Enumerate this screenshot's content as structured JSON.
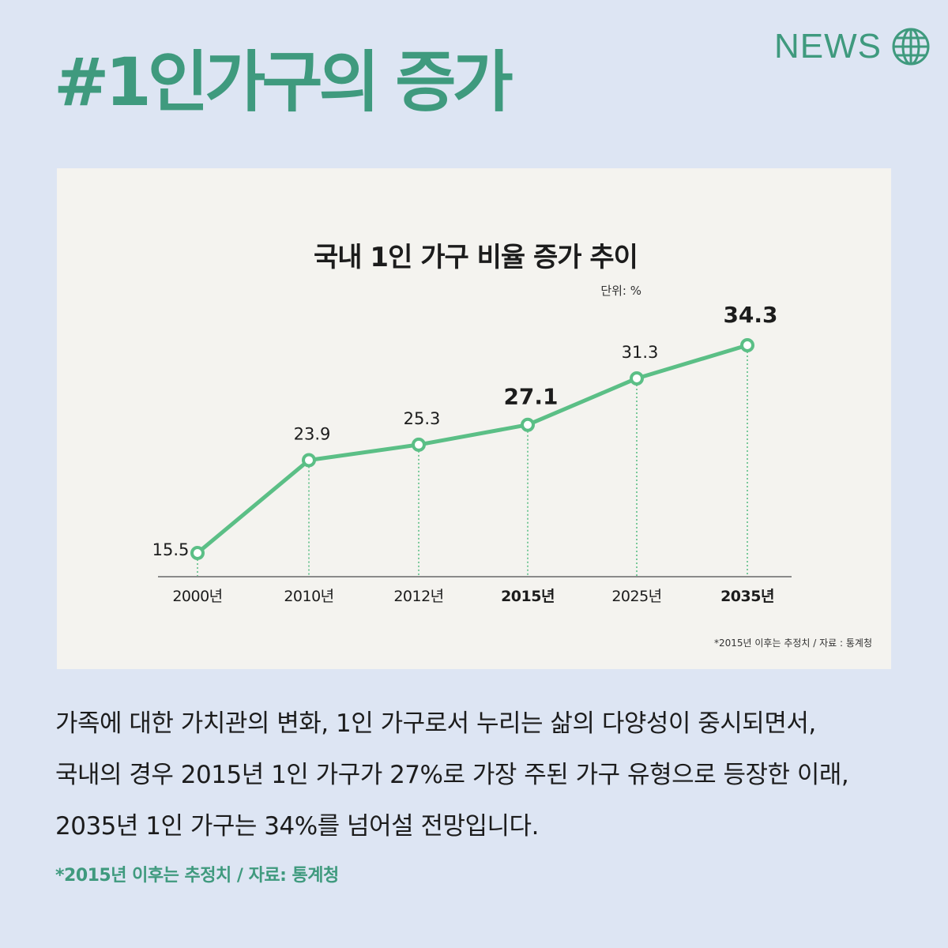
{
  "header": {
    "title": "#1인가구의 증가",
    "news_label": "NEWS",
    "news_icon": "globe-icon"
  },
  "colors": {
    "background": "#dde5f3",
    "accent": "#3f9a7e",
    "line": "#5bbf86",
    "card": "#f4f3ef"
  },
  "chart_data": {
    "type": "line",
    "title": "국내 1인 가구 비율 증가 추이",
    "unit_label": "단위: %",
    "categories": [
      "2000년",
      "2010년",
      "2012년",
      "2015년",
      "2025년",
      "2035년"
    ],
    "values": [
      15.5,
      23.9,
      25.3,
      27.1,
      31.3,
      34.3
    ],
    "value_labels": [
      "15.5",
      "23.9",
      "25.3",
      "27.1",
      "31.3",
      "34.3"
    ],
    "emphasized_categories": [
      "2015년",
      "2035년"
    ],
    "emphasized_values": [
      "27.1",
      "34.3"
    ],
    "note": "*2015년 이후는 추정치 /  자료 : 통계청",
    "grid": false,
    "legend": "none"
  },
  "description": {
    "lines": [
      "가족에 대한 가치관의 변화, 1인 가구로서 누리는 삶의 다양성이 중시되면서,",
      "국내의 경우 2015년 1인 가구가 27%로 가장 주된 가구 유형으로 등장한 이래,",
      "2035년 1인 가구는 34%를 넘어설 전망입니다."
    ]
  },
  "footnote": "*2015년 이후는 추정치 / 자료: 통계청"
}
